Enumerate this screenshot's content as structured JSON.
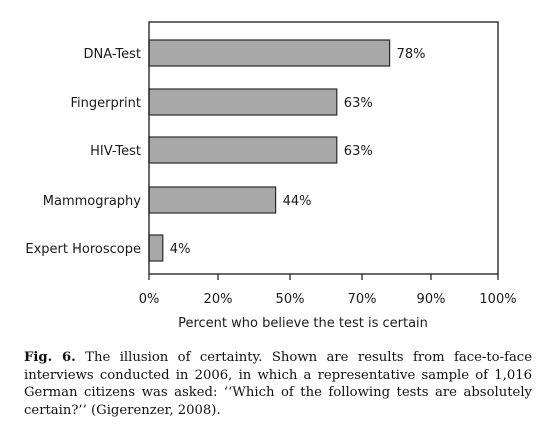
{
  "chart_data": {
    "type": "bar",
    "orientation": "horizontal",
    "categories": [
      "DNA-Test",
      "Fingerprint",
      "HIV-Test",
      "Mammography",
      "Expert Horoscope"
    ],
    "values": [
      78,
      63,
      63,
      44,
      4
    ],
    "value_labels": [
      "78%",
      "63%",
      "63%",
      "44%",
      "4%"
    ],
    "xlabel": "Percent  who believe the test is certain",
    "ylabel": "",
    "xticks": [
      0,
      20,
      50,
      70,
      90,
      100
    ],
    "xtick_labels": [
      "0%",
      "20%",
      "50%",
      "70%",
      "90%",
      "100%"
    ],
    "xlim": [
      0,
      100
    ],
    "grid": false,
    "bar_color": "#a8a8a8"
  },
  "caption": {
    "label": "Fig. 6.",
    "text": "The illusion of certainty. Shown are results from face-to-face interviews conducted in 2006, in which a representative sample of 1,016 German citizens was asked: ‘‘Which of the following tests are absolutely certain?’’ (Gigerenzer, 2008)."
  }
}
